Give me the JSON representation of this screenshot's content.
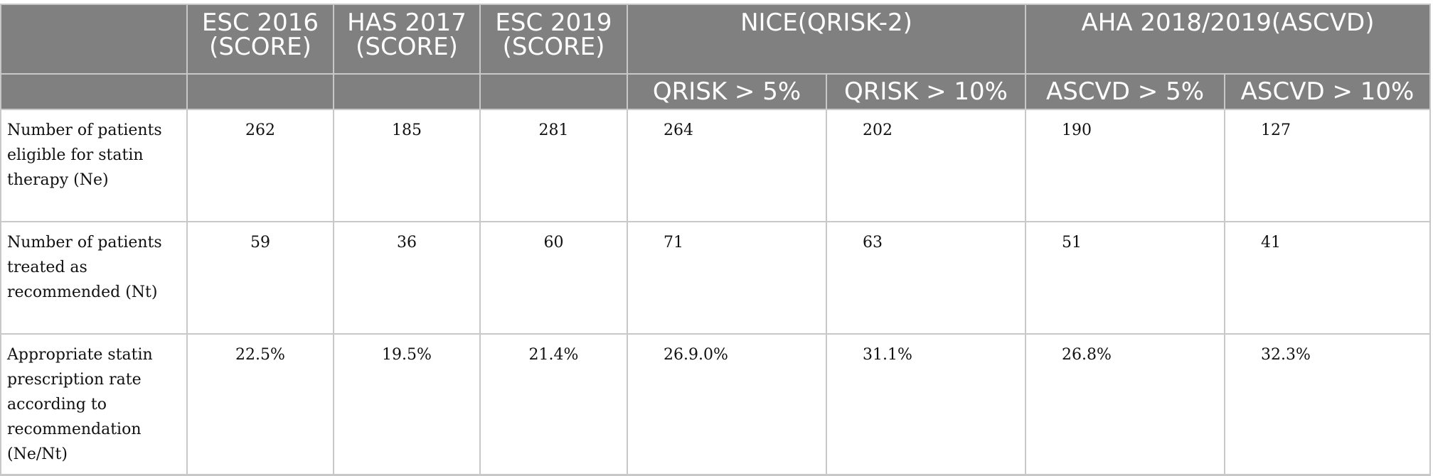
{
  "header": {
    "row1": {
      "corner": "",
      "esc2016": "ESC 2016 (SCORE)",
      "has2017": "HAS 2017 (SCORE)",
      "esc2019": "ESC 2019 (SCORE)",
      "nice": "NICE(QRISK-2)",
      "aha": "AHA 2018/2019(ASCVD)"
    },
    "row2": {
      "qrisk5": "QRISK > 5%",
      "qrisk10": "QRISK > 10%",
      "ascvd5": "ASCVD > 5%",
      "ascvd10": "ASCVD > 10%"
    }
  },
  "rows": [
    {
      "label": "Number of patients eligible for statin therapy (Ne)",
      "values": [
        "262",
        "185",
        "281",
        "264",
        "202",
        "190",
        "127"
      ]
    },
    {
      "label": "Number of patients treated as recommended (Nt)",
      "values": [
        "59",
        "36",
        "60",
        "71",
        "63",
        "51",
        "41"
      ]
    },
    {
      "label": "Appropriate statin prescription rate according to recommendation (Ne/Nt)",
      "values": [
        "22.5%",
        "19.5%",
        "21.4%",
        "26.9.0%",
        "31.1%",
        "26.8%",
        "32.3%"
      ]
    }
  ]
}
